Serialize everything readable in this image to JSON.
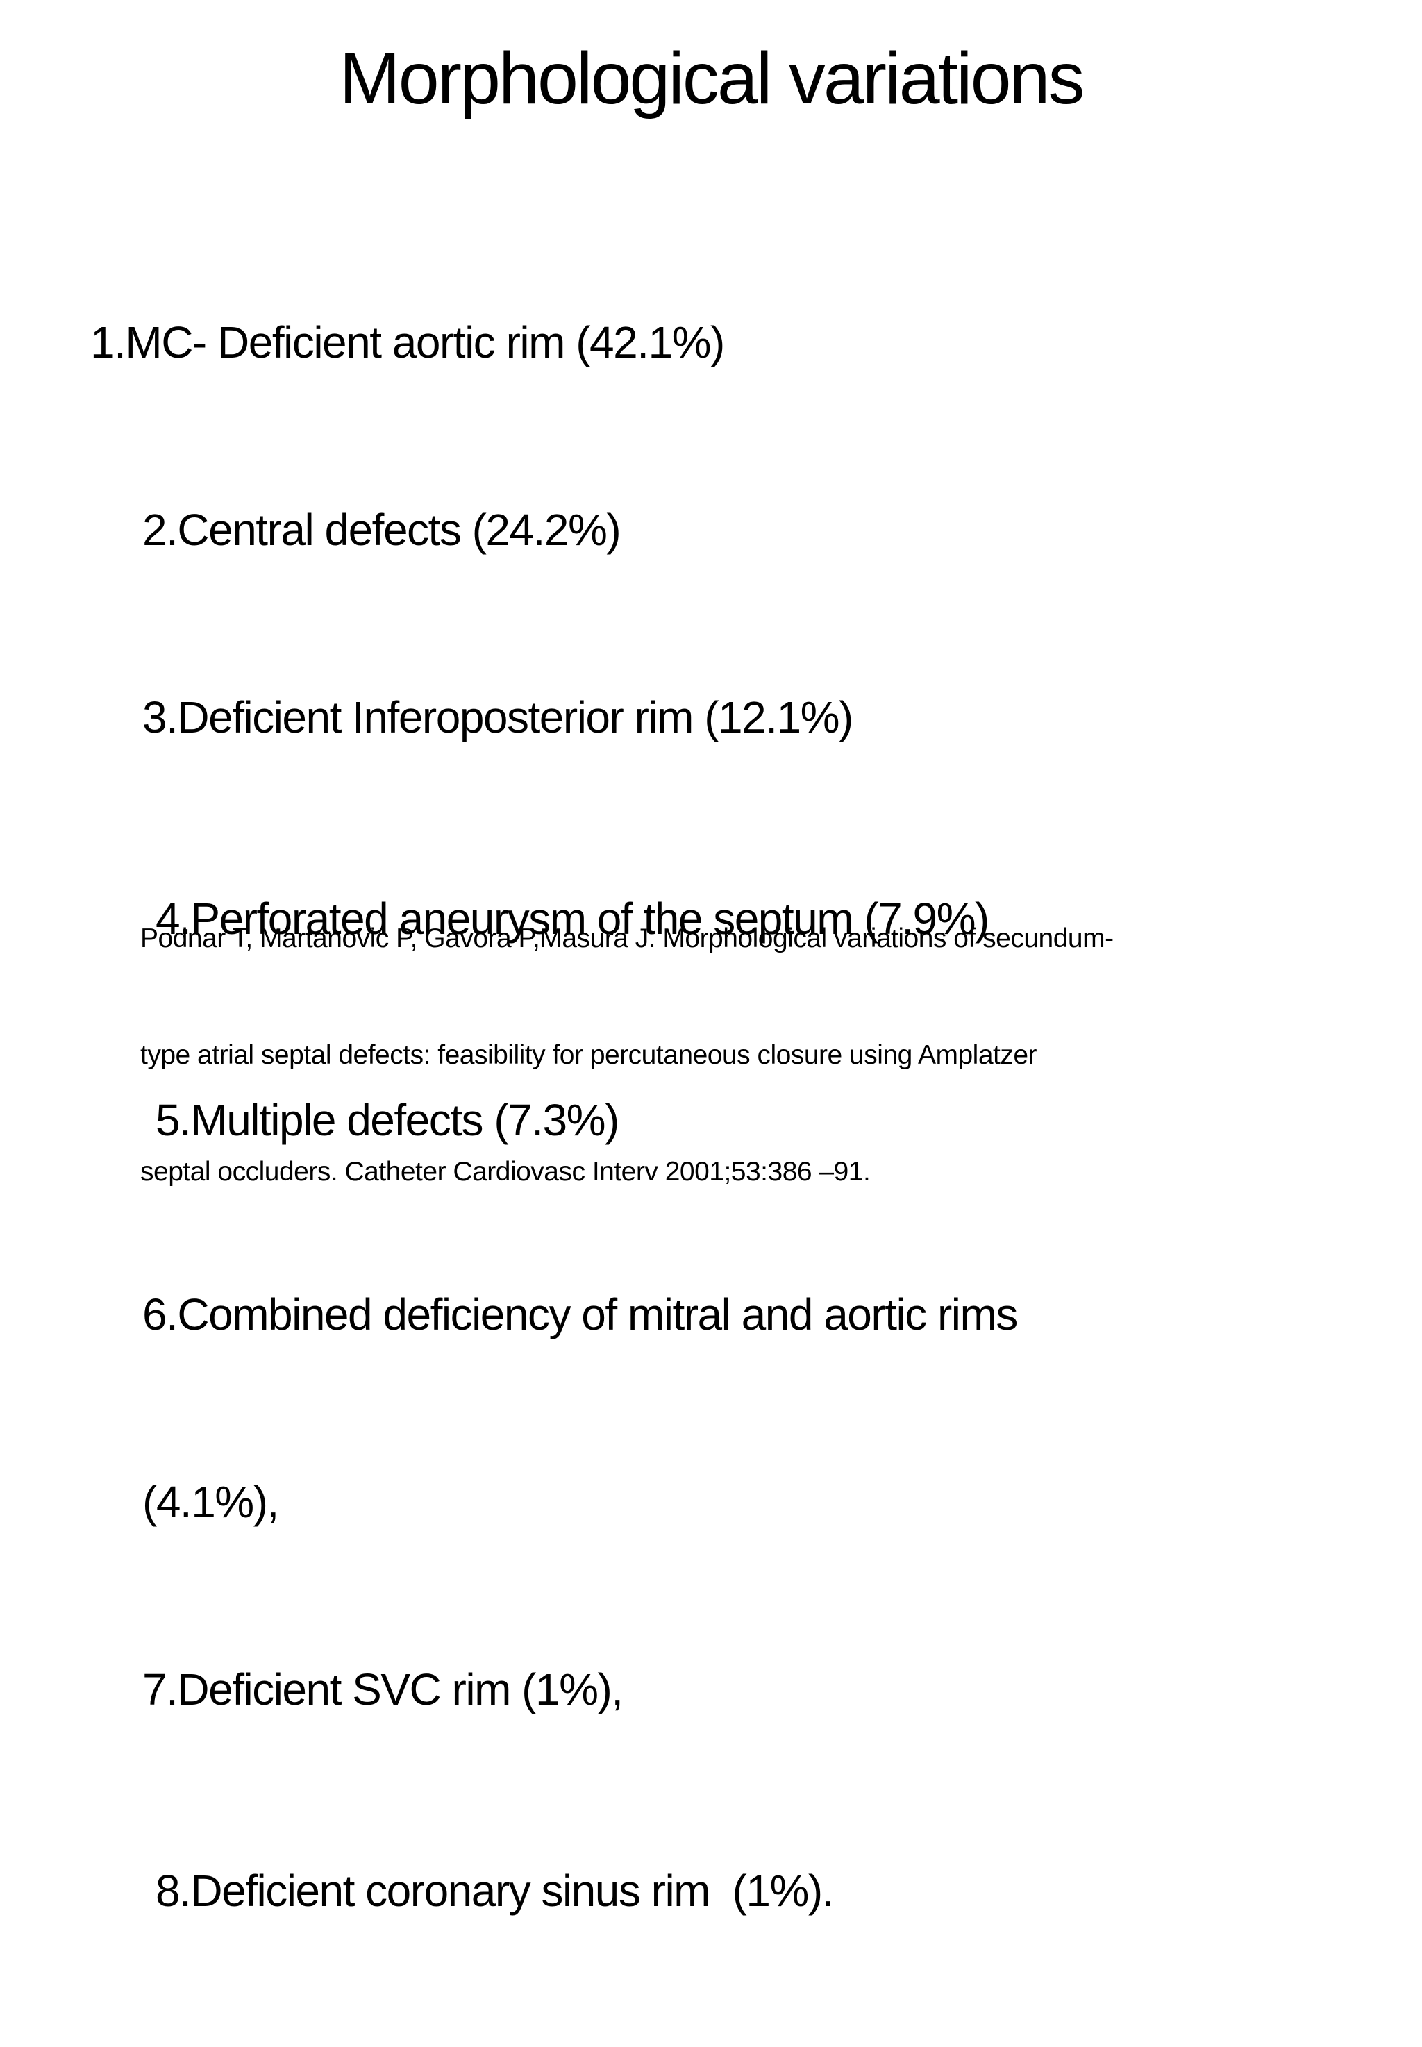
{
  "slide": {
    "title": "Morphological variations",
    "list": {
      "lines": [
        {
          "text": "1.MC- Deficient aortic rim (42.1%)"
        },
        {
          "text": "2.Central defects (24.2%)"
        },
        {
          "text": "3.Deficient Inferoposterior rim (12.1%)"
        },
        {
          "text": "4.Perforated aneurysm of the septum (7.9%)"
        },
        {
          "text": "5.Multiple defects (7.3%)"
        },
        {
          "text": "6.Combined deficiency of mitral and aortic rims"
        },
        {
          "text": "(4.1%),"
        },
        {
          "text": "7.Deficient SVC rim (1%),"
        },
        {
          "text": "8.Deficient coronary sinus rim  (1%)."
        }
      ]
    },
    "citation": {
      "lines": [
        {
          "text": "Podnar T, Martanovic P, Gavora P,Masura J. Morphological variations of secundum-"
        },
        {
          "text": "type atrial septal defects: feasibility for percutaneous closure using Amplatzer"
        },
        {
          "text": "septal occluders. Catheter Cardiovasc Interv 2001;53:386 –91."
        }
      ]
    },
    "colors": {
      "background": "#ffffff",
      "text": "#000000"
    }
  }
}
